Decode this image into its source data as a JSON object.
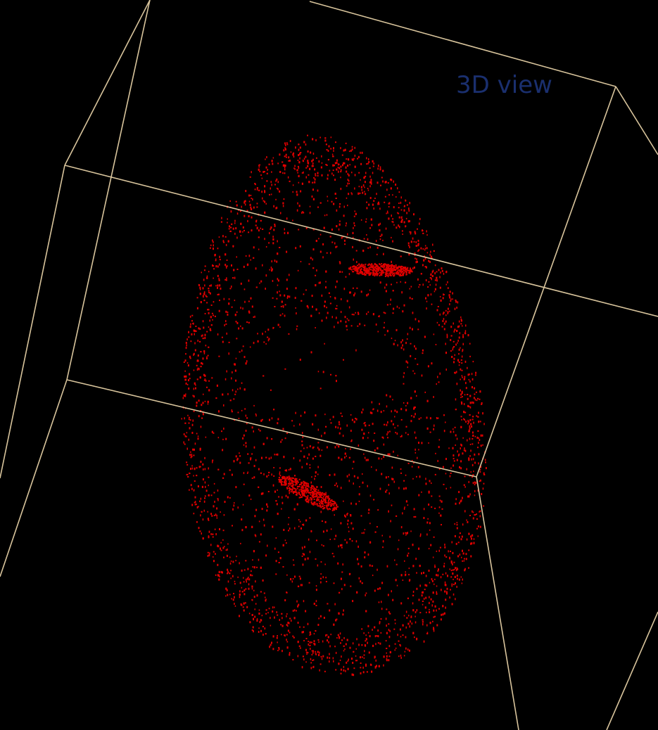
{
  "view": {
    "label": "3D view"
  }
}
